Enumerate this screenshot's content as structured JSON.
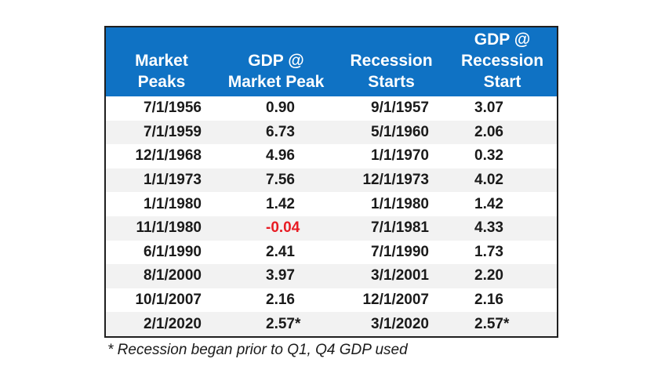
{
  "chart_data": {
    "type": "table",
    "columns": [
      "Market\nPeaks",
      "GDP @\nMarket Peak",
      "Recession\nStarts",
      "GDP @\nRecession\nStart"
    ],
    "rows": [
      [
        "7/1/1956",
        "0.90",
        "9/1/1957",
        "3.07"
      ],
      [
        "7/1/1959",
        "6.73",
        "5/1/1960",
        "2.06"
      ],
      [
        "12/1/1968",
        "4.96",
        "1/1/1970",
        "0.32"
      ],
      [
        "1/1/1973",
        "7.56",
        "12/1/1973",
        "4.02"
      ],
      [
        "1/1/1980",
        "1.42",
        "1/1/1980",
        "1.42"
      ],
      [
        "11/1/1980",
        "-0.04",
        "7/1/1981",
        "4.33"
      ],
      [
        "6/1/1990",
        "2.41",
        "7/1/1990",
        "1.73"
      ],
      [
        "8/1/2000",
        "3.97",
        "3/1/2001",
        "2.20"
      ],
      [
        "10/1/2007",
        "2.16",
        "12/1/2007",
        "2.16"
      ],
      [
        "2/1/2020",
        "2.57*",
        "3/1/2020",
        "2.57*"
      ]
    ],
    "footnote": "* Recession began prior to Q1, Q4 GDP used",
    "colors": {
      "header_bg": "#0f72c4",
      "header_text": "#ffffff",
      "negative_value": "#e81c24",
      "stripe": "#f2f2f2"
    }
  }
}
